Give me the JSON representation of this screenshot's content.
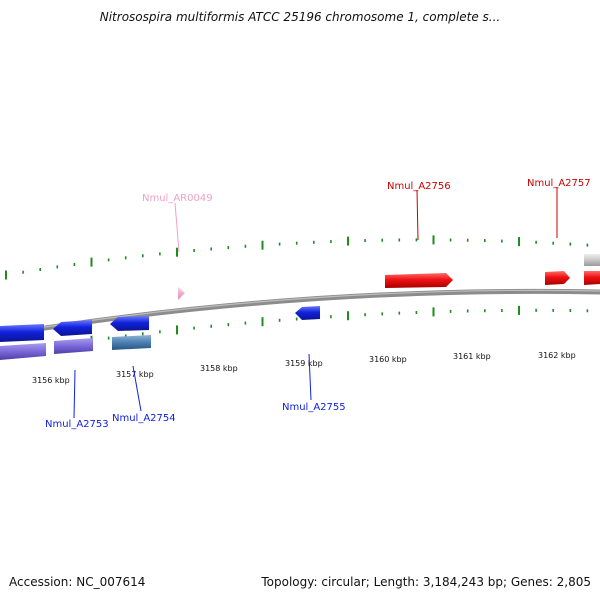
{
  "title": "Nitrosospira multiformis ATCC 25196 chromosome 1, complete s...",
  "footer": {
    "accession": "Accession: NC_007614",
    "stats": "Topology: circular; Length: 3,184,243 bp; Genes: 2,805"
  },
  "colors": {
    "backbone": "#8c8c8c",
    "tick": "#1e8c1e",
    "forward_gene": "#ee1111",
    "reverse_gene": "#1122dd",
    "rna_gene": "#f2a0c8",
    "other_gene": "#c8c8c8"
  },
  "scale": {
    "unit": "kbp",
    "labels": [
      "3156 kbp",
      "3157 kbp",
      "3158 kbp",
      "3159 kbp",
      "3160 kbp",
      "3161 kbp",
      "3162 kbp"
    ]
  },
  "genes": [
    {
      "id": "Nmul_A2753",
      "label": "Nmul_A2753",
      "strand": "reverse",
      "color": "#1122dd"
    },
    {
      "id": "Nmul_A2754",
      "label": "Nmul_A2754",
      "strand": "reverse",
      "color": "#1122dd"
    },
    {
      "id": "Nmul_AR0049",
      "label": "Nmul_AR0049",
      "strand": "forward",
      "color": "#f2a0c8"
    },
    {
      "id": "Nmul_A2755",
      "label": "Nmul_A2755",
      "strand": "reverse",
      "color": "#1122dd"
    },
    {
      "id": "Nmul_A2756",
      "label": "Nmul_A2756",
      "strand": "forward",
      "color": "#ee1111"
    },
    {
      "id": "Nmul_A2757",
      "label": "Nmul_A2757",
      "strand": "forward",
      "color": "#ee1111"
    }
  ]
}
